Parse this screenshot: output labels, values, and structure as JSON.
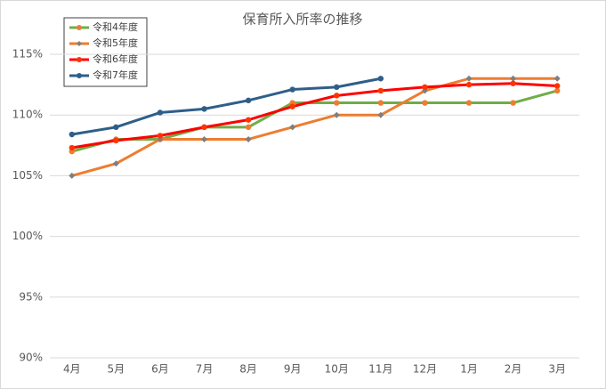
{
  "chart_data": {
    "type": "line",
    "title": "保育所入所率の推移",
    "categories": [
      "4月",
      "5月",
      "6月",
      "7月",
      "8月",
      "9月",
      "10月",
      "11月",
      "12月",
      "1月",
      "2月",
      "3月"
    ],
    "series": [
      {
        "name": "令和4年度",
        "color": "#70ad47",
        "marker_color": "#ed7d31",
        "marker": "circle",
        "values": [
          107.0,
          108.0,
          108.0,
          109.0,
          109.0,
          111.0,
          111.0,
          111.0,
          111.0,
          111.0,
          111.0,
          112.0
        ]
      },
      {
        "name": "令和5年度",
        "color": "#ed7d31",
        "marker_color": "#7f7f7f",
        "marker": "diamond",
        "values": [
          105.0,
          106.0,
          108.0,
          108.0,
          108.0,
          109.0,
          110.0,
          110.0,
          112.0,
          113.0,
          113.0,
          113.0
        ]
      },
      {
        "name": "令和6年度",
        "color": "#ff0000",
        "marker_color": "#ff3300",
        "marker": "circle",
        "values": [
          107.3,
          107.9,
          108.3,
          109.0,
          109.6,
          110.7,
          111.6,
          112.0,
          112.3,
          112.5,
          112.6,
          112.4
        ]
      },
      {
        "name": "令和7年度",
        "color": "#2e5f8a",
        "marker_color": "#2e5f8a",
        "marker": "circle",
        "values": [
          108.4,
          109.0,
          110.2,
          110.5,
          111.2,
          112.1,
          112.3,
          113.0,
          null,
          null,
          null,
          null
        ]
      }
    ],
    "ylim": [
      90,
      115
    ],
    "yticks": [
      {
        "value": 90,
        "label": "90%"
      },
      {
        "value": 95,
        "label": "95%"
      },
      {
        "value": 100,
        "label": "100%"
      },
      {
        "value": 105,
        "label": "105%"
      },
      {
        "value": 110,
        "label": "110%"
      },
      {
        "value": 115,
        "label": "115%"
      }
    ],
    "grid": true,
    "legend": "top-left"
  }
}
